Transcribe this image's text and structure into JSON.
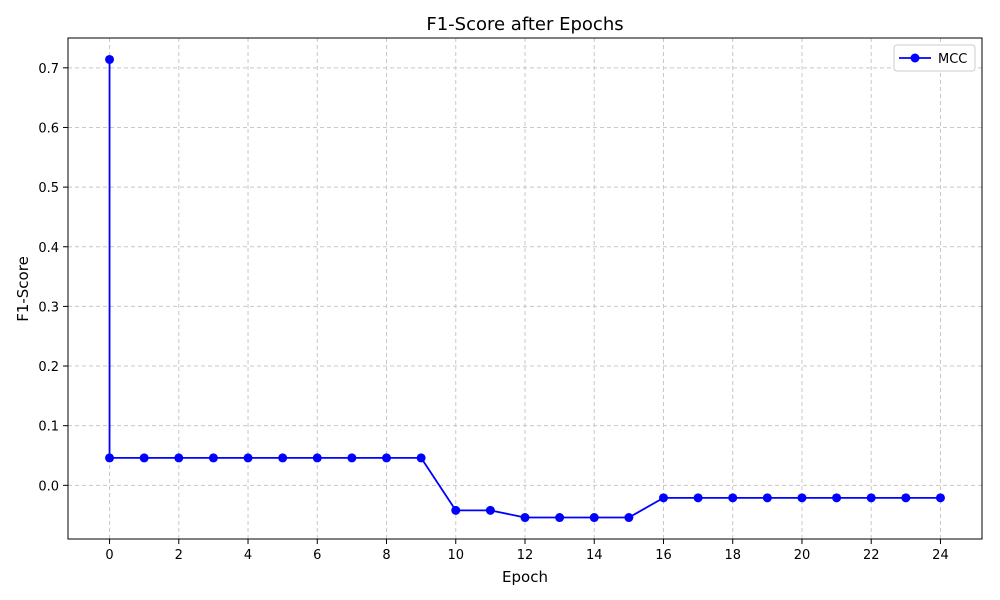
{
  "chart_data": {
    "type": "line",
    "title": "F1-Score after Epochs",
    "xlabel": "Epoch",
    "ylabel": "F1-Score",
    "xlim": [
      -1.2,
      25.2
    ],
    "ylim": [
      -0.09,
      0.75
    ],
    "xticks": [
      0,
      2,
      4,
      6,
      8,
      10,
      12,
      14,
      16,
      18,
      20,
      22,
      24
    ],
    "yticks": [
      0.0,
      0.1,
      0.2,
      0.3,
      0.4,
      0.5,
      0.6,
      0.7
    ],
    "ytick_labels": [
      "0.0",
      "0.1",
      "0.2",
      "0.3",
      "0.4",
      "0.5",
      "0.6",
      "0.7"
    ],
    "grid": true,
    "legend_position": "top-right",
    "series": [
      {
        "name": "MCC",
        "color": "#0000ff",
        "marker": "circle",
        "x": [
          0,
          0,
          1,
          2,
          3,
          4,
          5,
          6,
          7,
          8,
          9,
          10,
          11,
          12,
          13,
          14,
          15,
          16,
          17,
          18,
          19,
          20,
          21,
          22,
          23,
          24
        ],
        "y": [
          0.714,
          0.046,
          0.046,
          0.046,
          0.046,
          0.046,
          0.046,
          0.046,
          0.046,
          0.046,
          0.046,
          -0.042,
          -0.042,
          -0.054,
          -0.054,
          -0.054,
          -0.054,
          -0.021,
          -0.021,
          -0.021,
          -0.021,
          -0.021,
          -0.021,
          -0.021,
          -0.021,
          -0.021
        ]
      }
    ]
  }
}
